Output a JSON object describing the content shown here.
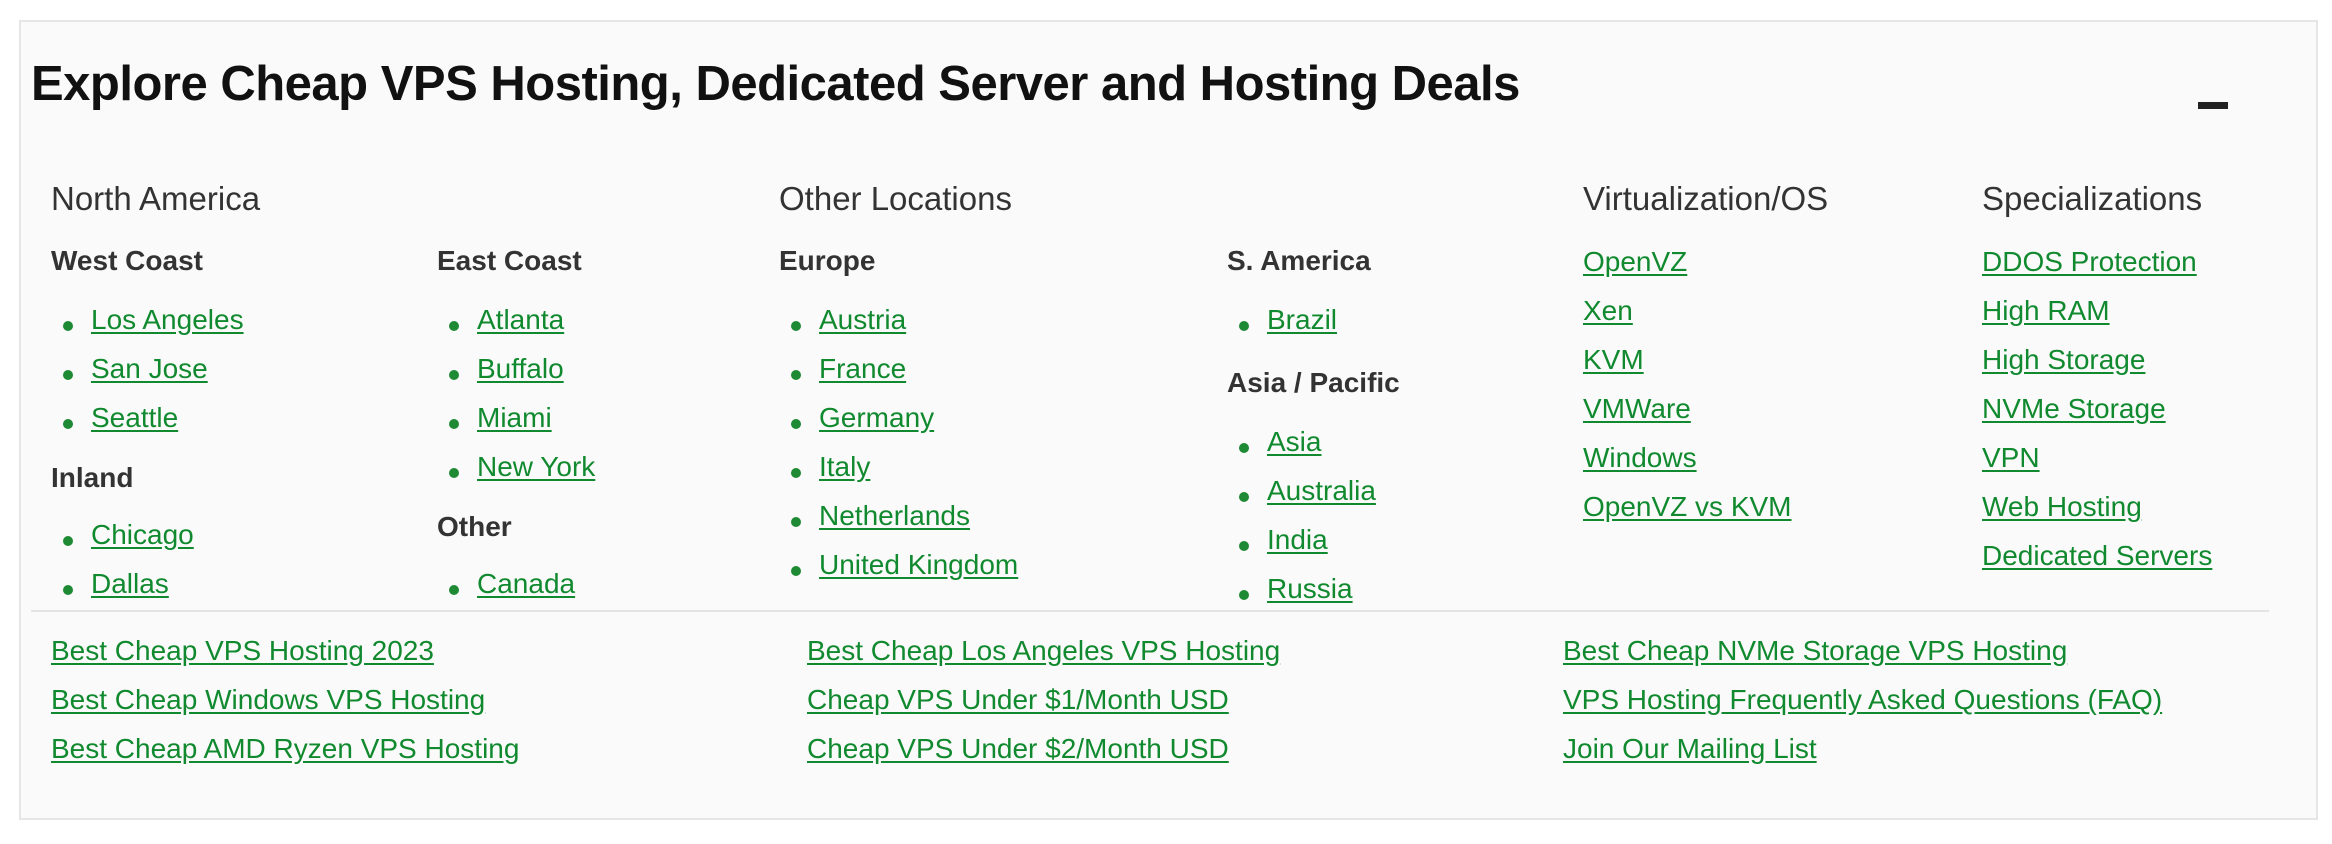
{
  "title": "Explore Cheap VPS Hosting, Dedicated Server and Hosting Deals",
  "north_america": {
    "heading": "North America",
    "west_coast": {
      "heading": "West Coast",
      "items": [
        "Los Angeles",
        "San Jose",
        "Seattle"
      ]
    },
    "inland": {
      "heading": "Inland",
      "items": [
        "Chicago",
        "Dallas"
      ]
    },
    "east_coast": {
      "heading": "East Coast",
      "items": [
        "Atlanta",
        "Buffalo",
        "Miami",
        "New York"
      ]
    },
    "other": {
      "heading": "Other",
      "items": [
        "Canada"
      ]
    }
  },
  "other_locations": {
    "heading": "Other Locations",
    "europe": {
      "heading": "Europe",
      "items": [
        "Austria",
        "France",
        "Germany",
        "Italy",
        "Netherlands",
        "United Kingdom"
      ]
    },
    "s_america": {
      "heading": "S. America",
      "items": [
        "Brazil"
      ]
    },
    "asia_pacific": {
      "heading": "Asia / Pacific",
      "items": [
        "Asia",
        "Australia",
        "India",
        "Russia"
      ]
    }
  },
  "virtualization": {
    "heading": "Virtualization/OS",
    "items": [
      "OpenVZ",
      "Xen",
      "KVM",
      "VMWare",
      "Windows",
      "OpenVZ vs KVM"
    ]
  },
  "specializations": {
    "heading": "Specializations",
    "items": [
      "DDOS Protection",
      "High RAM",
      "High Storage",
      "NVMe Storage",
      "VPN",
      "Web Hosting",
      "Dedicated Servers"
    ]
  },
  "bottom_links": {
    "col1": [
      "Best Cheap VPS Hosting 2023",
      "Best Cheap Windows VPS Hosting",
      "Best Cheap AMD Ryzen VPS Hosting"
    ],
    "col2": [
      "Best Cheap Los Angeles VPS Hosting",
      "Cheap VPS Under $1/Month USD",
      "Cheap VPS Under $2/Month USD"
    ],
    "col3": [
      "Best Cheap NVMe Storage VPS Hosting",
      "VPS Hosting Frequently Asked Questions (FAQ)",
      "Join Our Mailing List"
    ]
  },
  "colors": {
    "link": "#118a2f",
    "panel_bg": "#fafafa",
    "border": "#e6e6e6"
  },
  "icons": {
    "collapse": "minus-icon"
  }
}
